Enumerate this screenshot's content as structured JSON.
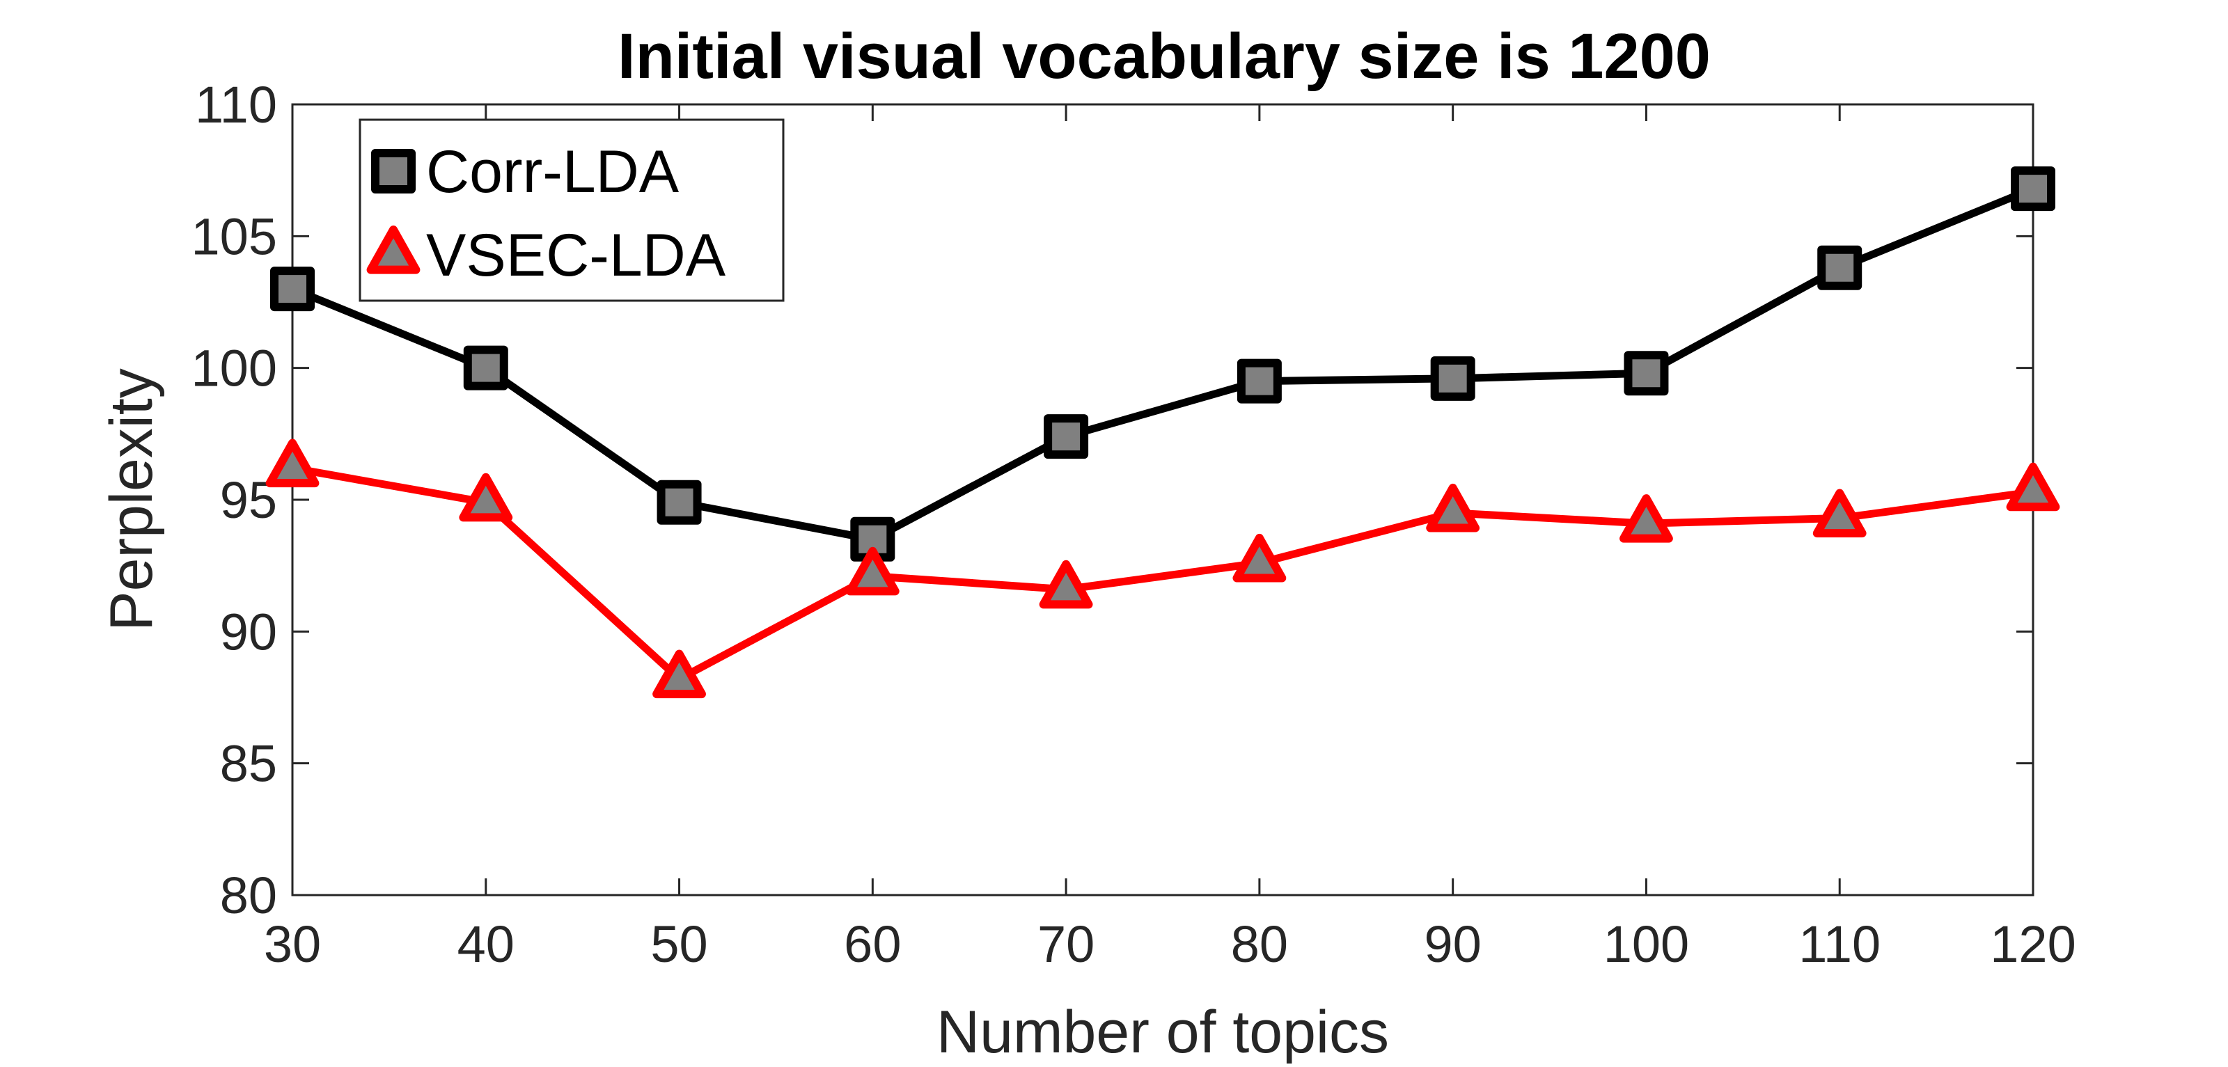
{
  "chart_data": {
    "type": "line",
    "title": "Initial visual vocabulary size is 1200",
    "xlabel": "Number of topics",
    "ylabel": "Perplexity",
    "x": [
      30,
      40,
      50,
      60,
      70,
      80,
      90,
      100,
      110,
      120
    ],
    "xlim": [
      30,
      120
    ],
    "ylim": [
      80,
      110
    ],
    "xticks": [
      "30",
      "40",
      "50",
      "60",
      "70",
      "80",
      "90",
      "100",
      "110",
      "120"
    ],
    "yticks": [
      "80",
      "85",
      "90",
      "95",
      "100",
      "105",
      "110"
    ],
    "grid": false,
    "legend_position": "top-left",
    "series": [
      {
        "name": "Corr-LDA",
        "values": [
          103.0,
          100.0,
          94.9,
          93.5,
          97.4,
          99.5,
          99.6,
          99.8,
          103.8,
          106.8
        ],
        "line_color": "#000000",
        "marker": "square",
        "marker_fill": "#808080",
        "marker_edge": "#000000"
      },
      {
        "name": "VSEC-LDA",
        "values": [
          96.2,
          94.9,
          88.2,
          92.1,
          91.6,
          92.6,
          94.5,
          94.1,
          94.3,
          95.3
        ],
        "line_color": "#ff0000",
        "marker": "triangle",
        "marker_fill": "#808080",
        "marker_edge": "#ff0000"
      }
    ]
  }
}
